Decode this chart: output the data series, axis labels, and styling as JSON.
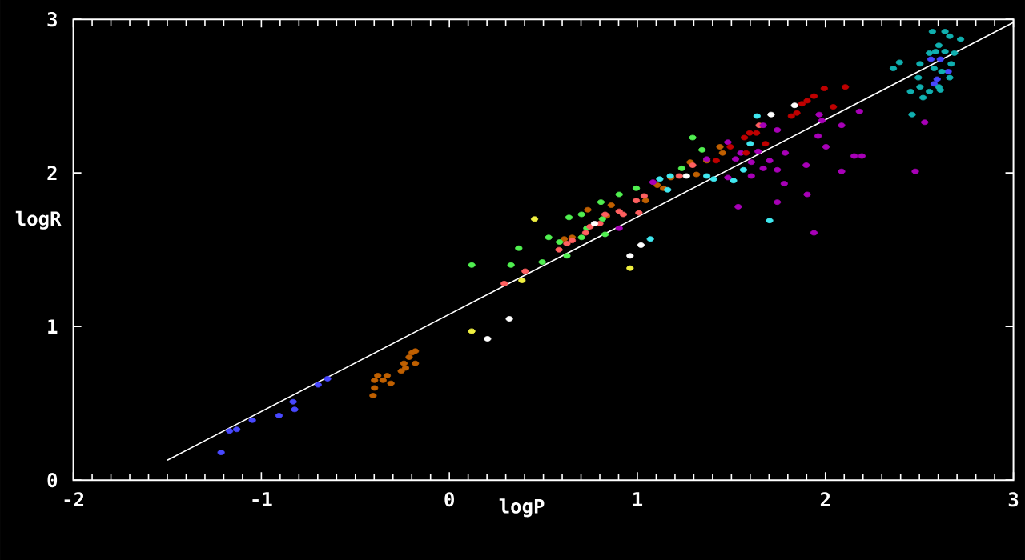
{
  "chart_data": {
    "type": "scatter",
    "xlabel": "logP",
    "ylabel": "logR",
    "xlim": [
      -2,
      3
    ],
    "ylim": [
      0,
      3
    ],
    "xticks": [
      -2,
      -1,
      0,
      1,
      2,
      3
    ],
    "yticks": [
      0,
      1,
      2,
      3
    ],
    "marker": "circle",
    "series": [
      {
        "color": "#4848ff",
        "x": [
          -1.214,
          -1.169,
          -1.131,
          -1.048,
          -0.906,
          -0.831,
          -0.823,
          -0.698,
          -0.648,
          2.561,
          2.611,
          2.653,
          2.594,
          2.578
        ],
        "values": [
          0.18,
          0.32,
          0.33,
          0.39,
          0.42,
          0.51,
          0.46,
          0.62,
          0.66,
          2.74,
          2.74,
          2.66,
          2.61,
          2.58
        ]
      },
      {
        "color": "#c06000",
        "x": [
          -0.406,
          -0.398,
          -0.398,
          -0.381,
          -0.353,
          -0.331,
          -0.311,
          -0.256,
          -0.233,
          -0.242,
          -0.214,
          -0.198,
          -0.181,
          -0.181,
          0.736,
          0.611,
          0.653,
          0.861,
          0.836,
          1.044,
          1.139,
          1.178,
          1.314,
          1.439,
          1.453,
          1.369,
          1.281,
          1.106
        ],
        "values": [
          0.55,
          0.6,
          0.65,
          0.68,
          0.65,
          0.68,
          0.63,
          0.71,
          0.73,
          0.76,
          0.8,
          0.83,
          0.84,
          0.76,
          1.76,
          1.57,
          1.58,
          1.79,
          1.72,
          1.82,
          1.9,
          1.97,
          1.99,
          2.17,
          2.13,
          2.08,
          2.07,
          1.92
        ]
      },
      {
        "color": "#50f050",
        "x": [
          0.119,
          0.328,
          0.369,
          0.494,
          0.528,
          0.586,
          0.625,
          0.636,
          0.703,
          0.731,
          0.703,
          0.806,
          0.903,
          0.994,
          0.828,
          0.814,
          1.294,
          1.344,
          1.236
        ],
        "values": [
          1.4,
          1.4,
          1.51,
          1.42,
          1.58,
          1.55,
          1.46,
          1.71,
          1.73,
          1.64,
          1.58,
          1.81,
          1.86,
          1.9,
          1.6,
          1.7,
          2.23,
          2.15,
          2.03
        ]
      },
      {
        "color": "#ff6060",
        "x": [
          0.292,
          0.403,
          0.583,
          0.625,
          0.653,
          0.725,
          0.748,
          0.8,
          0.828,
          0.903,
          0.925,
          0.994,
          1.036,
          1.008,
          1.223,
          1.294,
          1.648
        ],
        "values": [
          1.28,
          1.36,
          1.5,
          1.54,
          1.56,
          1.61,
          1.65,
          1.67,
          1.73,
          1.75,
          1.73,
          1.82,
          1.85,
          1.74,
          1.98,
          2.05,
          2.31
        ]
      },
      {
        "color": "#f0f040",
        "x": [
          0.453,
          0.386,
          0.119,
          0.961
        ],
        "values": [
          1.7,
          1.3,
          0.97,
          1.38
        ]
      },
      {
        "color": "#ffffff",
        "x": [
          0.319,
          0.203,
          0.961,
          1.019,
          0.772,
          1.261,
          1.836,
          1.711
        ],
        "values": [
          1.05,
          0.92,
          1.46,
          1.53,
          1.67,
          1.98,
          2.44,
          2.38
        ]
      },
      {
        "color": "#40e8f0",
        "x": [
          1.069,
          1.119,
          1.161,
          1.175,
          1.369,
          1.406,
          1.511,
          1.564,
          1.6,
          1.636,
          1.703
        ],
        "values": [
          1.57,
          1.96,
          1.89,
          1.98,
          1.98,
          1.96,
          1.95,
          2.02,
          2.19,
          2.37,
          1.69
        ]
      },
      {
        "color": "#a800b8",
        "x": [
          1.083,
          0.903,
          1.369,
          1.481,
          1.522,
          1.55,
          1.606,
          1.606,
          1.481,
          1.536,
          1.669,
          1.642,
          1.703,
          1.669,
          1.744,
          1.744,
          1.781,
          1.744,
          1.786,
          1.898,
          1.903,
          1.967,
          1.961,
          2.003,
          2.086,
          2.086,
          2.153,
          2.194,
          2.181,
          1.939,
          1.981,
          2.528,
          2.478
        ],
        "values": [
          1.94,
          1.64,
          2.09,
          2.2,
          2.09,
          2.13,
          2.07,
          1.98,
          1.97,
          1.78,
          2.31,
          2.14,
          2.08,
          2.03,
          2.02,
          1.81,
          1.93,
          2.28,
          2.13,
          2.05,
          1.86,
          2.38,
          2.24,
          2.17,
          2.31,
          2.01,
          2.11,
          2.11,
          2.4,
          1.61,
          2.34,
          2.33,
          2.01
        ]
      },
      {
        "color": "#c00000",
        "x": [
          1.419,
          1.494,
          1.578,
          1.569,
          1.597,
          1.633,
          1.681,
          1.819,
          1.848,
          1.875,
          1.903,
          1.939,
          1.994,
          2.042,
          2.106
        ],
        "values": [
          2.08,
          2.17,
          2.13,
          2.23,
          2.26,
          2.26,
          2.19,
          2.37,
          2.39,
          2.45,
          2.47,
          2.5,
          2.55,
          2.43,
          2.56
        ]
      },
      {
        "color": "#10b0b0",
        "x": [
          2.569,
          2.636,
          2.661,
          2.719,
          2.603,
          2.586,
          2.553,
          2.636,
          2.686,
          2.394,
          2.361,
          2.503,
          2.578,
          2.669,
          2.619,
          2.661,
          2.494,
          2.503,
          2.453,
          2.553,
          2.603,
          2.611,
          2.519,
          2.461
        ],
        "values": [
          2.92,
          2.92,
          2.89,
          2.87,
          2.83,
          2.79,
          2.78,
          2.79,
          2.78,
          2.72,
          2.68,
          2.71,
          2.68,
          2.71,
          2.66,
          2.62,
          2.62,
          2.56,
          2.53,
          2.53,
          2.56,
          2.54,
          2.49,
          2.38
        ]
      },
      {
        "type": "line",
        "marker": "none",
        "color": "#ffffff",
        "x": [
          -1.5,
          3
        ],
        "values": [
          0.13,
          2.98
        ]
      }
    ]
  }
}
